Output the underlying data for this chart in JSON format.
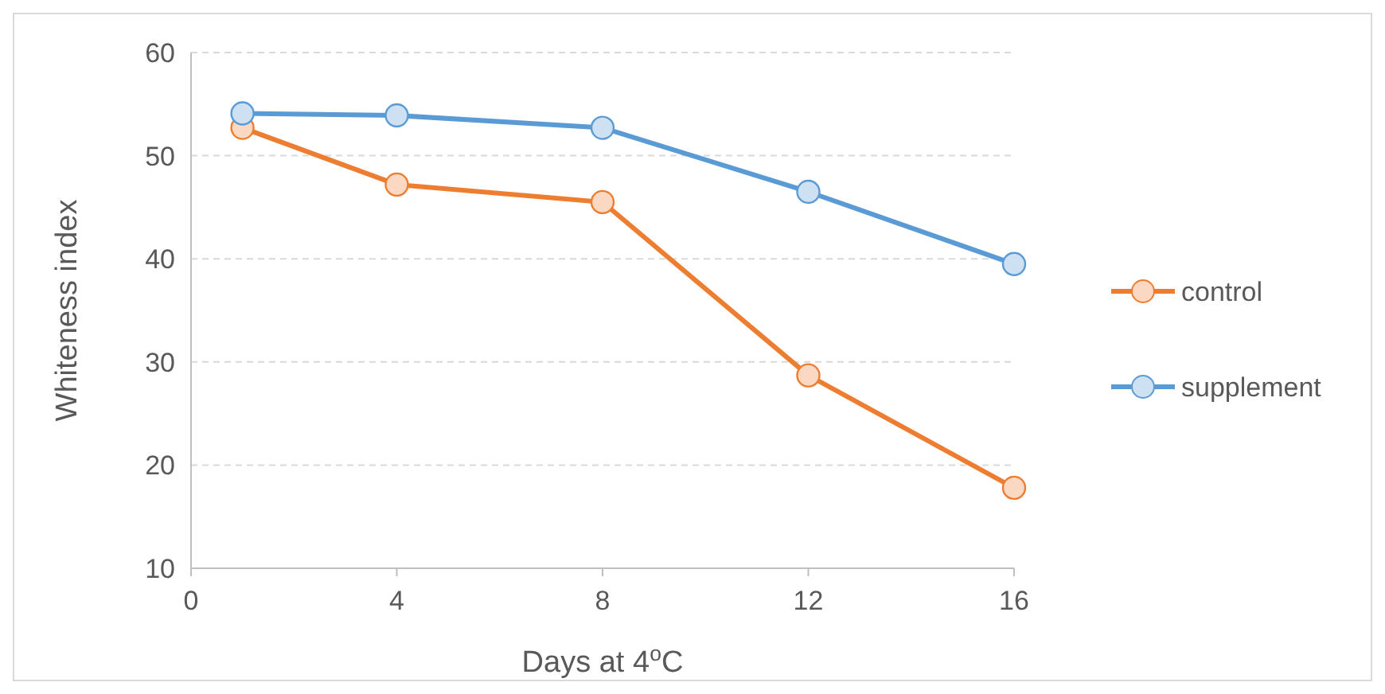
{
  "chart_data": {
    "type": "line",
    "xlabel": "Days at 4$^{o}$C",
    "ylabel": "Whiteness index",
    "x": [
      1,
      4,
      8,
      12,
      16
    ],
    "series": [
      {
        "name": "control",
        "color": "#ed7d31",
        "values": [
          52.7,
          47.2,
          45.5,
          28.7,
          17.8
        ]
      },
      {
        "name": "supplement",
        "color": "#5b9bd5",
        "values": [
          54.1,
          53.9,
          52.7,
          46.5,
          39.5
        ]
      }
    ],
    "xlim": [
      0,
      16
    ],
    "xticks": [
      0,
      4,
      8,
      12,
      16
    ],
    "ylim": [
      10,
      60
    ],
    "yticks": [
      10,
      20,
      30,
      40,
      50,
      60
    ],
    "grid": "y",
    "legend": "right",
    "marker": "circle",
    "line_style": "solid"
  }
}
